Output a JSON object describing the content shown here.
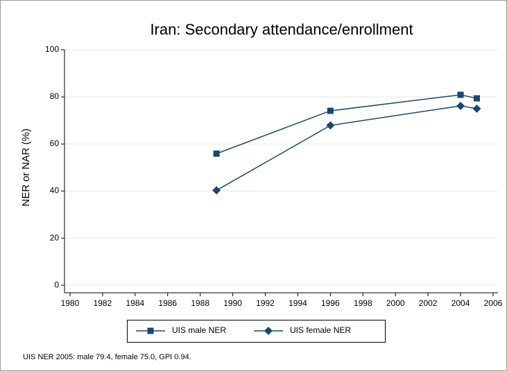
{
  "chart_data": {
    "type": "line",
    "title": "Iran: Secondary attendance/enrollment",
    "y_label": "NER or NAR (%)",
    "note": "UIS NER 2005: male 79.4, female 75.0, GPI 0.94.",
    "x": [
      1989,
      1996,
      2004,
      2005
    ],
    "series": [
      {
        "name": "UIS male NER",
        "color": "#1a476f",
        "marker": "square",
        "values": [
          55.9,
          74.1,
          80.9,
          79.4
        ]
      },
      {
        "name": "UIS female NER",
        "color": "#1a476f",
        "marker": "diamond",
        "values": [
          40.3,
          67.9,
          76.2,
          75.0
        ]
      }
    ],
    "xlim": [
      1979.66,
      2006.3
    ],
    "xticks": [
      1980,
      1982,
      1984,
      1986,
      1988,
      1990,
      1992,
      1994,
      1996,
      1998,
      2000,
      2002,
      2004,
      2006
    ],
    "ylim": [
      -3.2,
      100
    ],
    "yticks": [
      0,
      20,
      40,
      60,
      80,
      100
    ],
    "grid": true
  }
}
